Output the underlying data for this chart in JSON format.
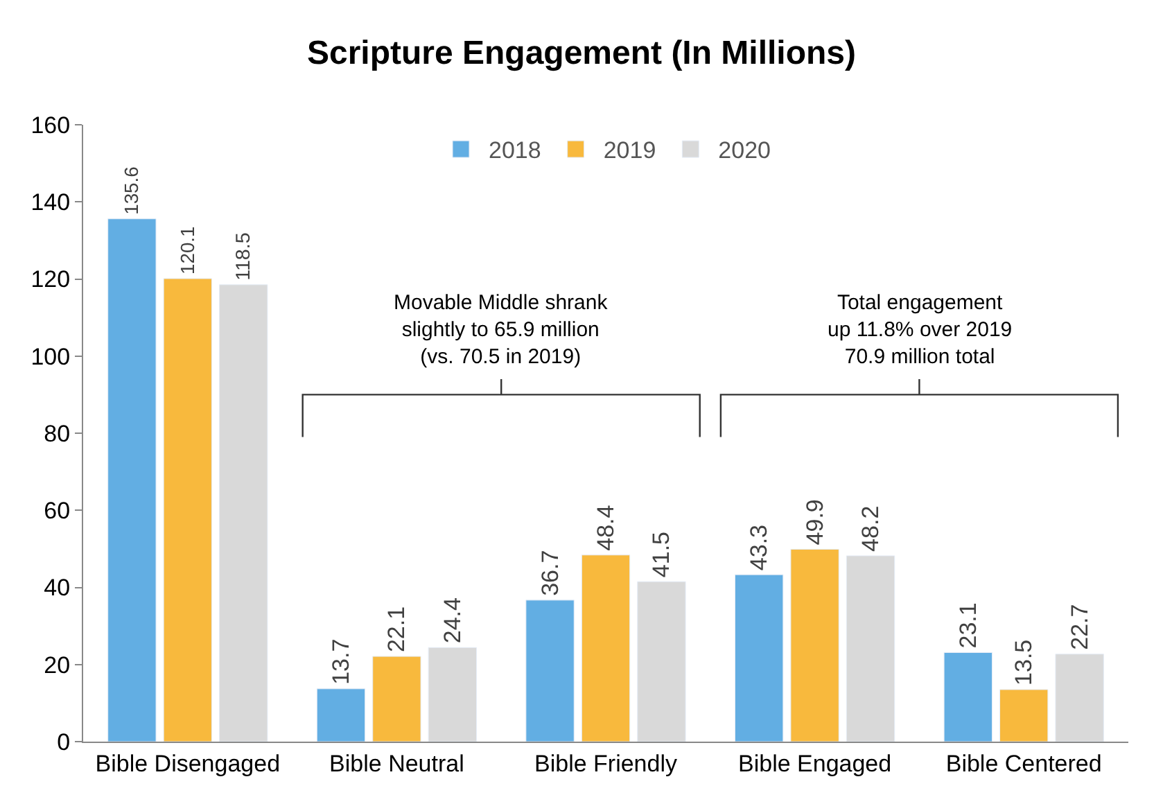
{
  "chart_data": {
    "type": "bar",
    "title": "Scripture Engagement (In Millions)",
    "categories": [
      "Bible Disengaged",
      "Bible Neutral",
      "Bible Friendly",
      "Bible Engaged",
      "Bible Centered"
    ],
    "series": [
      {
        "name": "2018",
        "color": "#62aee3",
        "values": [
          135.6,
          13.7,
          36.7,
          43.3,
          23.1
        ]
      },
      {
        "name": "2019",
        "color": "#f8b93d",
        "values": [
          120.1,
          22.1,
          48.4,
          49.9,
          13.5
        ]
      },
      {
        "name": "2020",
        "color": "#d9d9d9",
        "values": [
          118.5,
          24.4,
          41.5,
          48.2,
          22.7
        ]
      }
    ],
    "ylim": [
      0,
      160
    ],
    "yticks": [
      0,
      20,
      40,
      60,
      80,
      100,
      120,
      140,
      160
    ],
    "data_labels": true,
    "legend": "top",
    "annotations": [
      "Movable Middle shrank\nslightly to 65.9 million\n(vs. 70.5 in 2019)",
      "Total engagement\nup 11.8% over 2019\n70.9 million total"
    ]
  }
}
